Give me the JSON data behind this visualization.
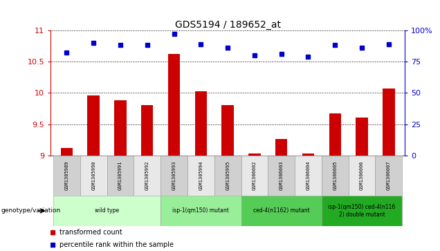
{
  "title": "GDS5194 / 189652_at",
  "samples": [
    "GSM1305989",
    "GSM1305990",
    "GSM1305991",
    "GSM1305992",
    "GSM1305993",
    "GSM1305994",
    "GSM1305995",
    "GSM1306002",
    "GSM1306003",
    "GSM1306004",
    "GSM1306005",
    "GSM1306006",
    "GSM1306007"
  ],
  "bar_values": [
    9.12,
    9.96,
    9.88,
    9.8,
    10.62,
    10.02,
    9.8,
    9.03,
    9.27,
    9.03,
    9.67,
    9.61,
    10.07
  ],
  "dot_values": [
    82,
    90,
    88,
    88,
    97,
    89,
    86,
    80,
    81,
    79,
    88,
    86,
    89
  ],
  "bar_color": "#cc0000",
  "dot_color": "#0000cc",
  "ylim_left": [
    9,
    11
  ],
  "ylim_right": [
    0,
    100
  ],
  "yticks_left": [
    9,
    9.5,
    10,
    10.5,
    11
  ],
  "yticks_right": [
    0,
    25,
    50,
    75,
    100
  ],
  "ytick_labels_left": [
    "9",
    "9.5",
    "10",
    "10.5",
    "11"
  ],
  "ytick_labels_right": [
    "0",
    "25",
    "50",
    "75",
    "100%"
  ],
  "groups": [
    {
      "label": "wild type",
      "start": 0,
      "end": 3,
      "color": "#ccffcc"
    },
    {
      "label": "isp-1(qm150) mutant",
      "start": 4,
      "end": 6,
      "color": "#99ee99"
    },
    {
      "label": "ced-4(n1162) mutant",
      "start": 7,
      "end": 9,
      "color": "#55cc55"
    },
    {
      "label": "isp-1(qm150) ced-4(n116\n2) double mutant",
      "start": 10,
      "end": 12,
      "color": "#22aa22"
    }
  ],
  "genotype_label": "genotype/variation",
  "legend_bar_label": "transformed count",
  "legend_dot_label": "percentile rank within the sample",
  "background_color": "#ffffff",
  "cell_bg_odd": "#d0d0d0",
  "cell_bg_even": "#e8e8e8"
}
